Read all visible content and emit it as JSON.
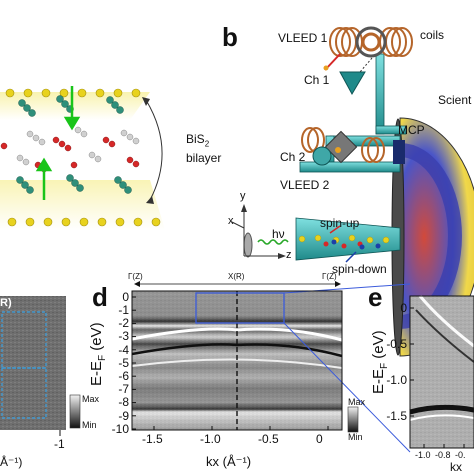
{
  "panels": {
    "b_label": "b",
    "d_label": "d",
    "e_label": "e"
  },
  "panel_a": {
    "bilayer_label": "BiS",
    "bilayer_sub": "2",
    "bilayer_word": "bilayer"
  },
  "panel_b": {
    "vleed1": "VLEED 1",
    "coils": "coils",
    "ch1": "Ch 1",
    "scient": "Scient",
    "mcp": "MCP",
    "ch2": "Ch 2",
    "vleed2": "VLEED 2",
    "hv": "hν",
    "spin_up": "spin-up",
    "spin_down": "spin-down",
    "axis_y": "y",
    "axis_x": "x",
    "axis_z": "z"
  },
  "panel_c": {
    "top_label": "R)",
    "cbar_max": "Max",
    "cbar_min": "Min",
    "x_tick": "-1",
    "x_unit": "Å⁻¹)"
  },
  "panel_d": {
    "top_points": [
      "Γ(Z)",
      "X(R)",
      "Γ(Z)"
    ],
    "ylabel": "E-E",
    "ylabel_sub": "F",
    "ylabel_unit": " (eV)",
    "xlabel": "kx (Å⁻¹)",
    "y_ticks": [
      "0",
      "-1",
      "-2",
      "-3",
      "-4",
      "-5",
      "-6",
      "-7",
      "-8",
      "-9",
      "-10"
    ],
    "x_ticks": [
      "-1.5",
      "-1.0",
      "-0.5",
      "0"
    ],
    "cbar_max": "Max",
    "cbar_min": "Min"
  },
  "panel_e": {
    "ylabel": "E-E",
    "ylabel_sub": "F",
    "ylabel_unit": " (eV)",
    "y_ticks": [
      "0",
      "-0.5",
      "-1.0",
      "-1.5"
    ],
    "x_ticks": [
      "-1.0",
      "-0.8",
      "-0."
    ],
    "xlabel": "kx"
  },
  "colors": {
    "accent_blue": "#3b5bdb",
    "spin_up": "#d62828",
    "spin_down": "#1c3fa8",
    "atom_yellow": "#e8d21d",
    "copper": "#b5652a",
    "teal": "#1f8a8a"
  }
}
